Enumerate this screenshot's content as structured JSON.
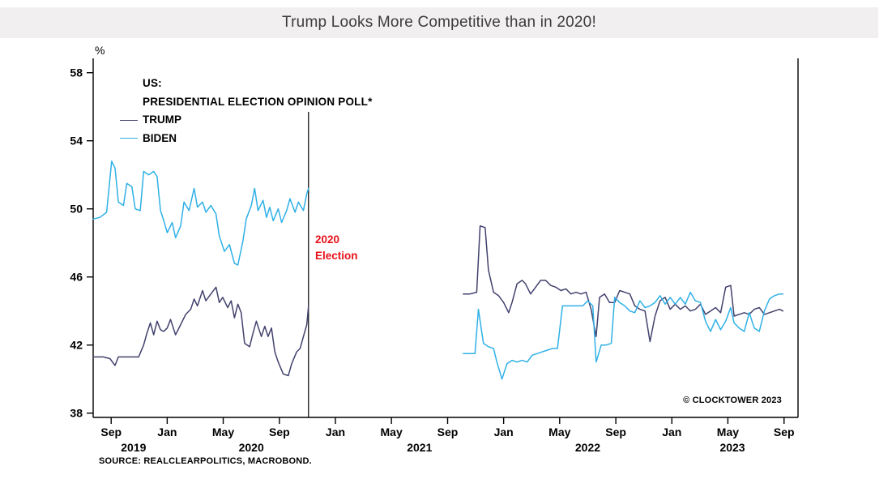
{
  "header": {
    "title": "Trump Looks More Competitive than in 2020!"
  },
  "chart_data": {
    "type": "line",
    "title": "Trump Looks More Competitive than in 2020!",
    "xlabel": "",
    "ylabel": "%",
    "ylim": [
      37.75,
      58.7
    ],
    "yticks": [
      38,
      42,
      46,
      50,
      54,
      58
    ],
    "xlim": [
      2019.56,
      2023.75
    ],
    "grid": false,
    "xticks": [
      {
        "x": 2019.667,
        "label": "Sep"
      },
      {
        "x": 2020.0,
        "label": "Jan"
      },
      {
        "x": 2020.333,
        "label": "May"
      },
      {
        "x": 2020.667,
        "label": "Sep"
      },
      {
        "x": 2021.0,
        "label": "Jan"
      },
      {
        "x": 2021.333,
        "label": "May"
      },
      {
        "x": 2021.667,
        "label": "Sep"
      },
      {
        "x": 2022.0,
        "label": "Jan"
      },
      {
        "x": 2022.333,
        "label": "May"
      },
      {
        "x": 2022.667,
        "label": "Sep"
      },
      {
        "x": 2023.0,
        "label": "Jan"
      },
      {
        "x": 2023.333,
        "label": "May"
      },
      {
        "x": 2023.667,
        "label": "Sep"
      }
    ],
    "year_labels": [
      {
        "x": 2019.8,
        "label": "2019"
      },
      {
        "x": 2020.5,
        "label": "2020"
      },
      {
        "x": 2021.5,
        "label": "2021"
      },
      {
        "x": 2022.5,
        "label": "2022"
      },
      {
        "x": 2023.36,
        "label": "2023"
      }
    ],
    "legend": {
      "position": "top-left",
      "header1": "US:",
      "header2": "PRESIDENTIAL ELECTION OPINION POLL*"
    },
    "election_annotation": {
      "x": 2020.84,
      "line1": "2020",
      "line2": "Election",
      "color": "#e8111a"
    },
    "copyright": "© CLOCKTOWER 2023",
    "source": "SOURCE: REALCLEARPOLITICS, MACROBOND.",
    "series": [
      {
        "name": "TRUMP",
        "color": "#42416d",
        "segments": [
          [
            [
              2019.56,
              41.3
            ],
            [
              2019.62,
              41.3
            ],
            [
              2019.66,
              41.2
            ],
            [
              2019.69,
              40.8
            ],
            [
              2019.71,
              41.3
            ],
            [
              2019.77,
              41.3
            ],
            [
              2019.83,
              41.3
            ],
            [
              2019.86,
              42.0
            ],
            [
              2019.88,
              42.7
            ],
            [
              2019.9,
              43.3
            ],
            [
              2019.92,
              42.6
            ],
            [
              2019.94,
              43.4
            ],
            [
              2019.96,
              42.9
            ],
            [
              2019.98,
              42.8
            ],
            [
              2020.0,
              43.0
            ],
            [
              2020.02,
              43.5
            ],
            [
              2020.05,
              42.6
            ],
            [
              2020.08,
              43.2
            ],
            [
              2020.11,
              43.8
            ],
            [
              2020.14,
              44.1
            ],
            [
              2020.16,
              44.7
            ],
            [
              2020.18,
              44.3
            ],
            [
              2020.21,
              45.2
            ],
            [
              2020.23,
              44.6
            ],
            [
              2020.26,
              45.0
            ],
            [
              2020.29,
              45.4
            ],
            [
              2020.31,
              44.5
            ],
            [
              2020.33,
              44.8
            ],
            [
              2020.36,
              44.2
            ],
            [
              2020.38,
              44.6
            ],
            [
              2020.4,
              43.6
            ],
            [
              2020.42,
              44.4
            ],
            [
              2020.44,
              43.9
            ],
            [
              2020.46,
              42.1
            ],
            [
              2020.49,
              41.9
            ],
            [
              2020.51,
              42.7
            ],
            [
              2020.53,
              43.4
            ],
            [
              2020.56,
              42.5
            ],
            [
              2020.58,
              43.1
            ],
            [
              2020.6,
              42.5
            ],
            [
              2020.62,
              43.0
            ],
            [
              2020.64,
              41.6
            ],
            [
              2020.66,
              41.0
            ],
            [
              2020.69,
              40.3
            ],
            [
              2020.72,
              40.2
            ],
            [
              2020.74,
              40.9
            ],
            [
              2020.77,
              41.6
            ],
            [
              2020.79,
              41.8
            ],
            [
              2020.81,
              42.5
            ],
            [
              2020.83,
              43.2
            ],
            [
              2020.84,
              44.3
            ]
          ],
          [
            [
              2021.76,
              45.0
            ],
            [
              2021.8,
              45.0
            ],
            [
              2021.84,
              45.1
            ],
            [
              2021.86,
              49.0
            ],
            [
              2021.89,
              48.9
            ],
            [
              2021.91,
              46.4
            ],
            [
              2021.94,
              45.1
            ],
            [
              2021.97,
              44.9
            ],
            [
              2022.0,
              44.5
            ],
            [
              2022.03,
              43.9
            ],
            [
              2022.05,
              44.5
            ],
            [
              2022.08,
              45.6
            ],
            [
              2022.11,
              45.8
            ],
            [
              2022.13,
              45.6
            ],
            [
              2022.16,
              45.0
            ],
            [
              2022.19,
              45.4
            ],
            [
              2022.22,
              45.8
            ],
            [
              2022.25,
              45.8
            ],
            [
              2022.28,
              45.5
            ],
            [
              2022.31,
              45.4
            ],
            [
              2022.34,
              45.2
            ],
            [
              2022.37,
              45.3
            ],
            [
              2022.4,
              45.0
            ],
            [
              2022.43,
              45.1
            ],
            [
              2022.46,
              45.0
            ],
            [
              2022.49,
              45.1
            ],
            [
              2022.52,
              44.1
            ],
            [
              2022.55,
              42.5
            ],
            [
              2022.57,
              44.8
            ],
            [
              2022.6,
              45.0
            ],
            [
              2022.63,
              44.5
            ],
            [
              2022.66,
              44.5
            ],
            [
              2022.69,
              45.2
            ],
            [
              2022.72,
              45.1
            ],
            [
              2022.75,
              45.0
            ],
            [
              2022.78,
              44.3
            ],
            [
              2022.81,
              44.1
            ],
            [
              2022.84,
              44.0
            ],
            [
              2022.87,
              42.2
            ],
            [
              2022.9,
              43.7
            ],
            [
              2022.93,
              44.6
            ],
            [
              2022.96,
              44.8
            ],
            [
              2022.99,
              44.1
            ],
            [
              2023.02,
              44.4
            ],
            [
              2023.05,
              44.1
            ],
            [
              2023.08,
              44.3
            ],
            [
              2023.11,
              44.0
            ],
            [
              2023.14,
              44.1
            ],
            [
              2023.17,
              44.4
            ],
            [
              2023.2,
              43.8
            ],
            [
              2023.23,
              44.0
            ],
            [
              2023.26,
              44.2
            ],
            [
              2023.29,
              43.9
            ],
            [
              2023.32,
              45.4
            ],
            [
              2023.35,
              45.5
            ],
            [
              2023.37,
              43.7
            ],
            [
              2023.4,
              43.8
            ],
            [
              2023.43,
              43.9
            ],
            [
              2023.46,
              43.8
            ],
            [
              2023.49,
              44.1
            ],
            [
              2023.52,
              44.2
            ],
            [
              2023.55,
              43.8
            ],
            [
              2023.58,
              43.9
            ],
            [
              2023.61,
              44.0
            ],
            [
              2023.64,
              44.1
            ],
            [
              2023.66,
              44.0
            ]
          ]
        ]
      },
      {
        "name": "BIDEN",
        "color": "#2fb0e6",
        "segments": [
          [
            [
              2019.56,
              49.4
            ],
            [
              2019.6,
              49.5
            ],
            [
              2019.64,
              49.8
            ],
            [
              2019.67,
              52.8
            ],
            [
              2019.69,
              52.4
            ],
            [
              2019.71,
              50.4
            ],
            [
              2019.74,
              50.2
            ],
            [
              2019.76,
              51.5
            ],
            [
              2019.79,
              51.3
            ],
            [
              2019.81,
              50.0
            ],
            [
              2019.84,
              49.9
            ],
            [
              2019.86,
              52.2
            ],
            [
              2019.89,
              52.0
            ],
            [
              2019.92,
              52.2
            ],
            [
              2019.94,
              51.9
            ],
            [
              2019.96,
              49.9
            ],
            [
              2019.98,
              49.3
            ],
            [
              2020.0,
              48.6
            ],
            [
              2020.03,
              49.2
            ],
            [
              2020.05,
              48.3
            ],
            [
              2020.08,
              49.0
            ],
            [
              2020.1,
              50.4
            ],
            [
              2020.13,
              49.9
            ],
            [
              2020.16,
              51.2
            ],
            [
              2020.18,
              50.1
            ],
            [
              2020.21,
              50.4
            ],
            [
              2020.23,
              49.8
            ],
            [
              2020.26,
              50.2
            ],
            [
              2020.29,
              49.7
            ],
            [
              2020.31,
              48.4
            ],
            [
              2020.34,
              47.5
            ],
            [
              2020.37,
              47.9
            ],
            [
              2020.4,
              46.8
            ],
            [
              2020.42,
              46.7
            ],
            [
              2020.45,
              48.1
            ],
            [
              2020.47,
              49.4
            ],
            [
              2020.5,
              50.2
            ],
            [
              2020.52,
              51.2
            ],
            [
              2020.54,
              49.9
            ],
            [
              2020.57,
              50.5
            ],
            [
              2020.59,
              49.5
            ],
            [
              2020.61,
              50.1
            ],
            [
              2020.63,
              49.3
            ],
            [
              2020.66,
              50.0
            ],
            [
              2020.68,
              49.2
            ],
            [
              2020.71,
              49.9
            ],
            [
              2020.73,
              50.6
            ],
            [
              2020.76,
              49.8
            ],
            [
              2020.78,
              50.4
            ],
            [
              2020.81,
              49.9
            ],
            [
              2020.83,
              50.9
            ],
            [
              2020.84,
              51.2
            ]
          ],
          [
            [
              2021.76,
              41.5
            ],
            [
              2021.8,
              41.5
            ],
            [
              2021.83,
              41.5
            ],
            [
              2021.85,
              44.1
            ],
            [
              2021.88,
              42.1
            ],
            [
              2021.91,
              41.9
            ],
            [
              2021.94,
              41.8
            ],
            [
              2021.96,
              41.0
            ],
            [
              2021.99,
              40.0
            ],
            [
              2022.02,
              40.9
            ],
            [
              2022.05,
              41.1
            ],
            [
              2022.08,
              41.0
            ],
            [
              2022.11,
              41.1
            ],
            [
              2022.14,
              41.0
            ],
            [
              2022.17,
              41.4
            ],
            [
              2022.2,
              41.5
            ],
            [
              2022.23,
              41.6
            ],
            [
              2022.26,
              41.7
            ],
            [
              2022.29,
              41.8
            ],
            [
              2022.32,
              41.8
            ],
            [
              2022.35,
              44.3
            ],
            [
              2022.38,
              44.3
            ],
            [
              2022.41,
              44.3
            ],
            [
              2022.44,
              44.3
            ],
            [
              2022.47,
              44.3
            ],
            [
              2022.5,
              44.6
            ],
            [
              2022.53,
              44.3
            ],
            [
              2022.55,
              41.0
            ],
            [
              2022.58,
              42.0
            ],
            [
              2022.61,
              42.0
            ],
            [
              2022.64,
              42.1
            ],
            [
              2022.66,
              44.8
            ],
            [
              2022.69,
              44.5
            ],
            [
              2022.72,
              44.3
            ],
            [
              2022.75,
              44.0
            ],
            [
              2022.78,
              43.9
            ],
            [
              2022.81,
              44.6
            ],
            [
              2022.84,
              44.2
            ],
            [
              2022.87,
              44.3
            ],
            [
              2022.9,
              44.5
            ],
            [
              2022.93,
              44.9
            ],
            [
              2022.96,
              44.4
            ],
            [
              2022.99,
              44.8
            ],
            [
              2023.02,
              44.4
            ],
            [
              2023.05,
              44.8
            ],
            [
              2023.08,
              44.4
            ],
            [
              2023.11,
              45.1
            ],
            [
              2023.14,
              44.6
            ],
            [
              2023.17,
              44.5
            ],
            [
              2023.2,
              43.4
            ],
            [
              2023.23,
              42.8
            ],
            [
              2023.26,
              43.5
            ],
            [
              2023.29,
              42.9
            ],
            [
              2023.32,
              43.4
            ],
            [
              2023.35,
              44.2
            ],
            [
              2023.37,
              43.3
            ],
            [
              2023.4,
              43.0
            ],
            [
              2023.43,
              42.8
            ],
            [
              2023.46,
              43.9
            ],
            [
              2023.49,
              43.0
            ],
            [
              2023.52,
              42.8
            ],
            [
              2023.55,
              44.0
            ],
            [
              2023.58,
              44.7
            ],
            [
              2023.61,
              44.9
            ],
            [
              2023.64,
              45.0
            ],
            [
              2023.66,
              45.0
            ]
          ]
        ]
      }
    ]
  }
}
